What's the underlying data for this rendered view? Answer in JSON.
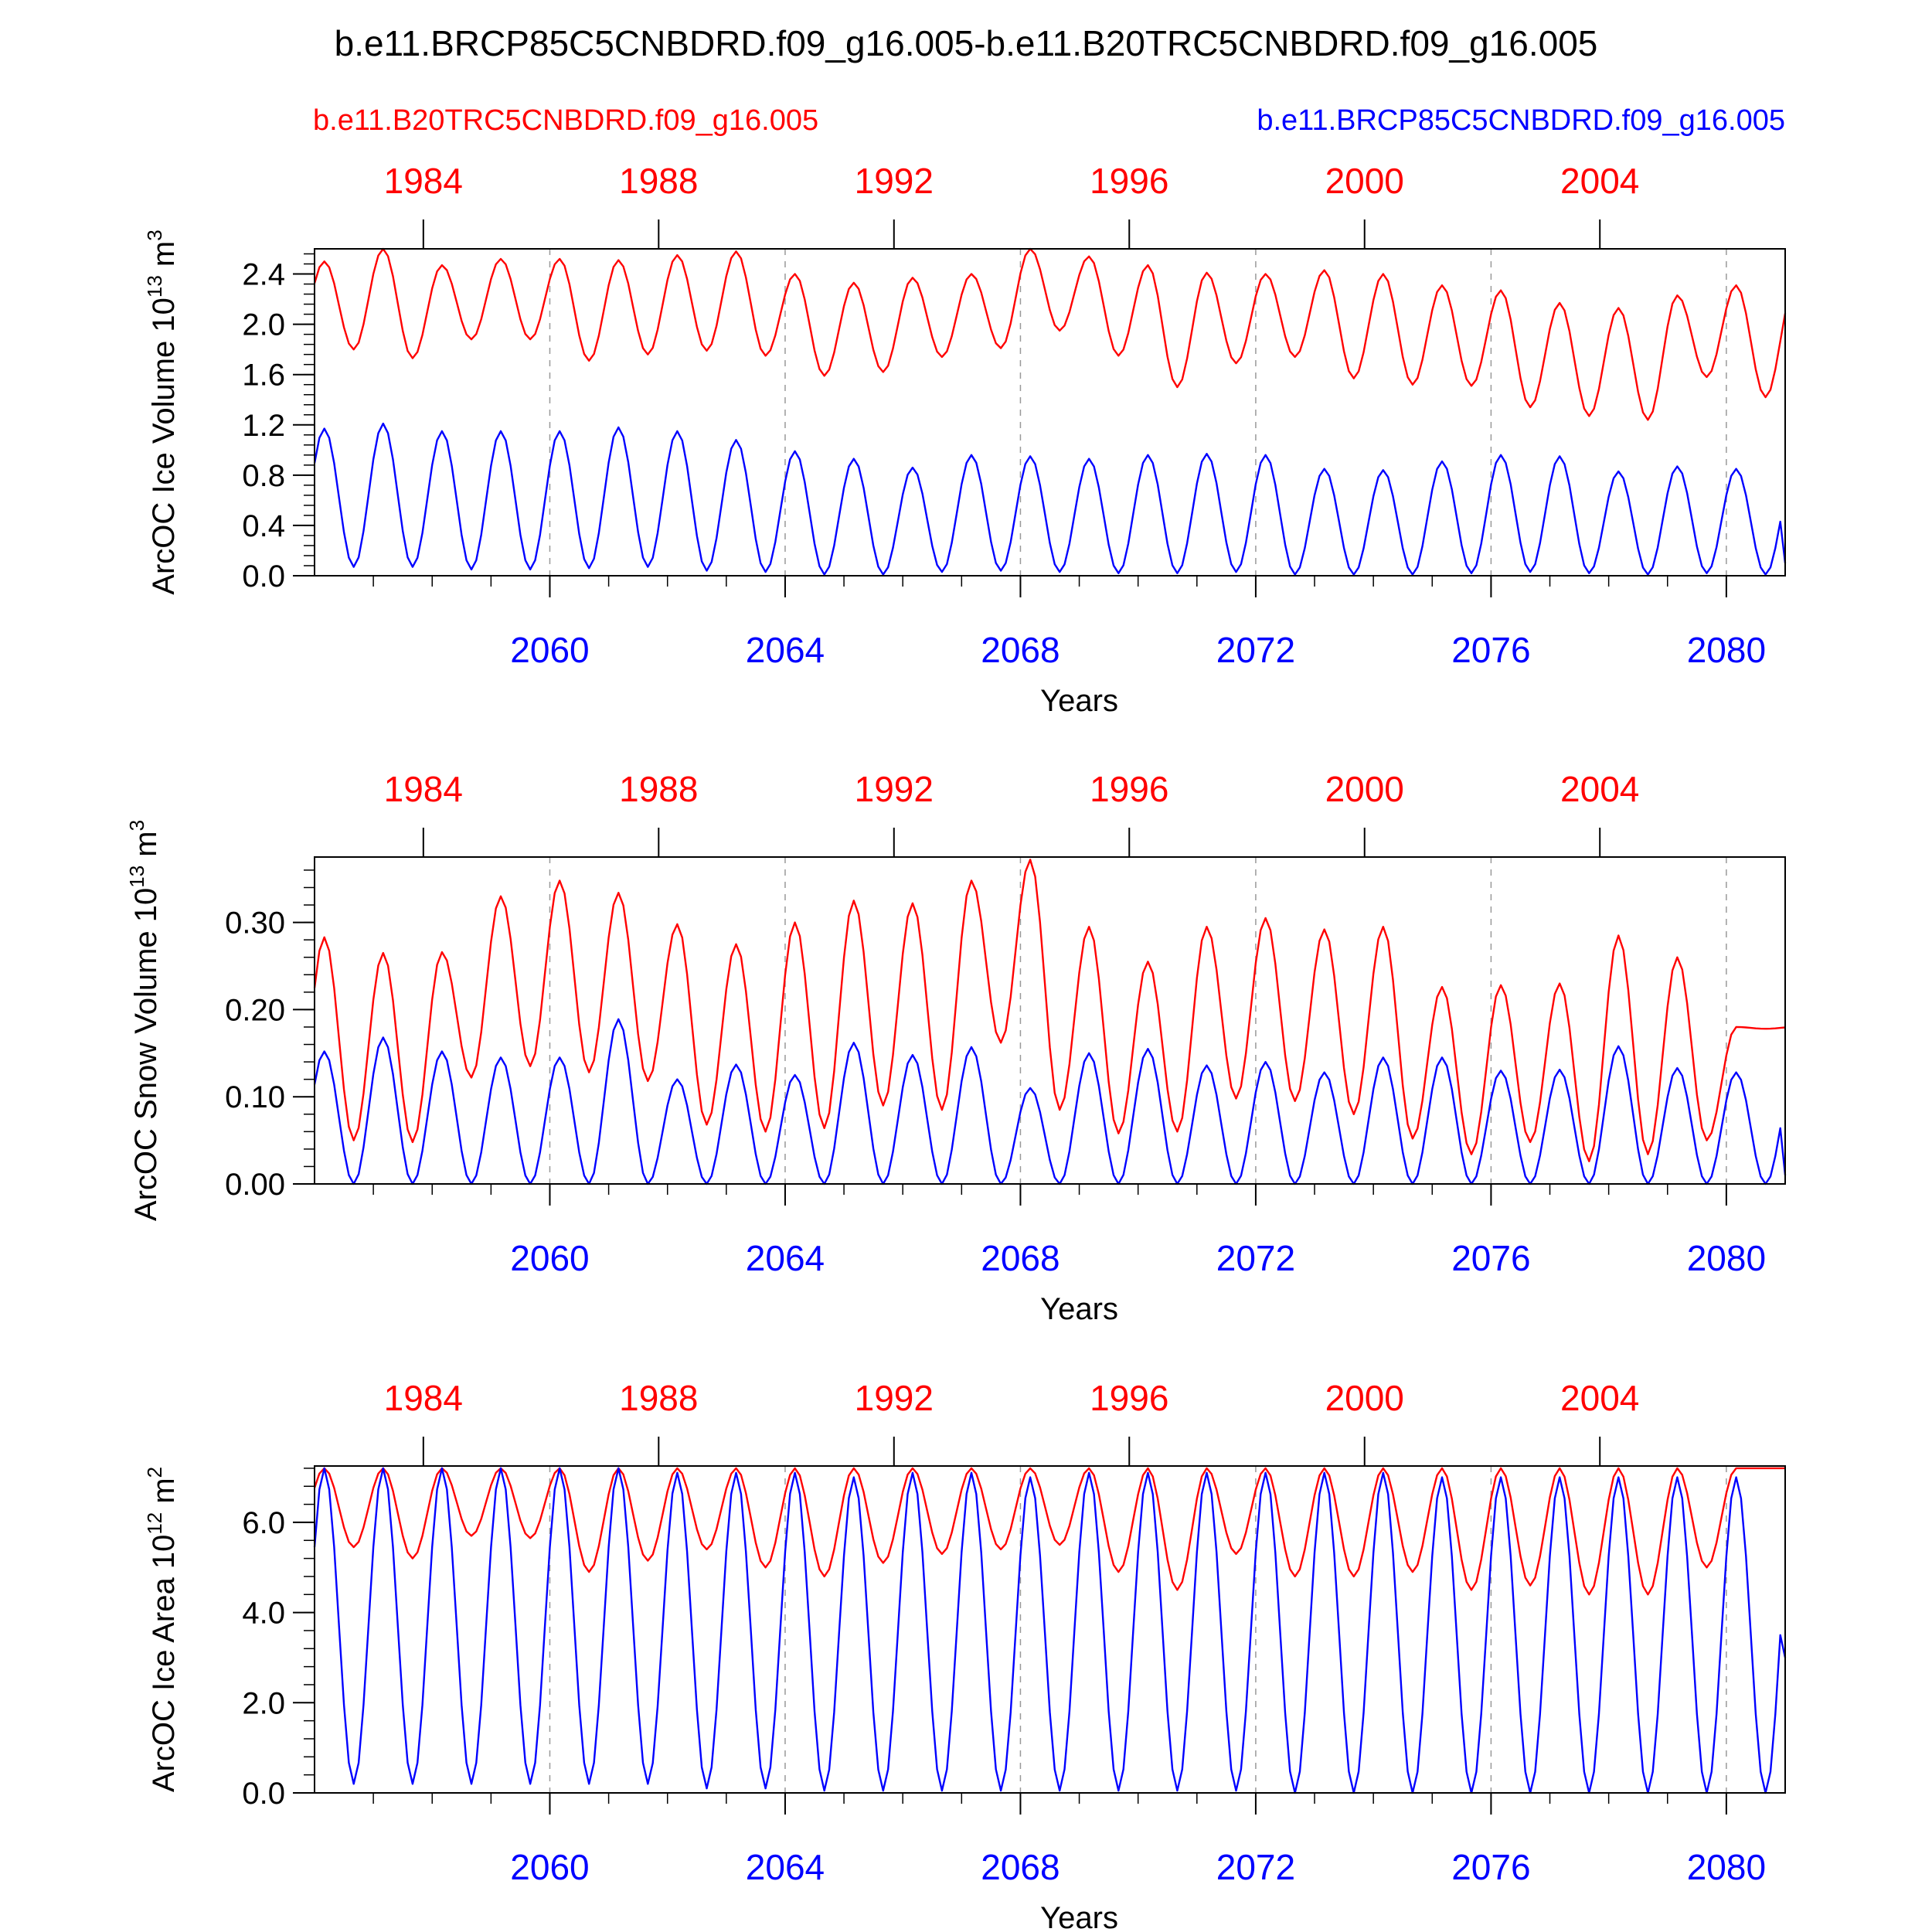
{
  "title": "b.e11.BRCP85C5CNBDRD.f09_g16.005-b.e11.B20TRC5CNBDRD.f09_g16.005",
  "legend": {
    "left": "b.e11.B20TRC5CNBDRD.f09_g16.005",
    "right": "b.e11.BRCP85C5CNBDRD.f09_g16.005"
  },
  "colors": {
    "red": "#ff0000",
    "blue": "#0000ff",
    "axis": "#000000",
    "grid": "#999999"
  },
  "chart_data": [
    {
      "type": "line",
      "ylabel": "ArcOC Ice Volume 10",
      "ylabel_exp": "13",
      "ylabel_unit": "m",
      "ylabel_unit_exp": "3",
      "xlabel": "Years",
      "ylim": [
        0.0,
        2.6
      ],
      "yticks": [
        "0.0",
        "0.4",
        "0.8",
        "1.2",
        "1.6",
        "2.0",
        "2.4"
      ],
      "ytick_values": [
        0.0,
        0.4,
        0.8,
        1.2,
        1.6,
        2.0,
        2.4
      ],
      "top_axis_ticks": [
        "1984",
        "1988",
        "1992",
        "1996",
        "2000",
        "2004"
      ],
      "bottom_axis_ticks": [
        "2060",
        "2064",
        "2068",
        "2072",
        "2076",
        "2080"
      ],
      "series": [
        {
          "name": "b.e11.B20TRC5CNBDRD.f09_g16.005",
          "color": "#ff0000",
          "cycle_max": [
            2.5,
            2.6,
            2.47,
            2.52,
            2.52,
            2.51,
            2.55,
            2.58,
            2.4,
            2.33,
            2.37,
            2.4,
            2.6,
            2.54,
            2.47,
            2.41,
            2.4,
            2.43,
            2.4,
            2.31,
            2.27,
            2.17,
            2.13,
            2.23,
            2.31
          ],
          "cycle_min": [
            1.8,
            1.73,
            1.88,
            1.88,
            1.71,
            1.76,
            1.79,
            1.75,
            1.59,
            1.62,
            1.74,
            1.81,
            1.95,
            1.75,
            1.5,
            1.69,
            1.74,
            1.57,
            1.52,
            1.51,
            1.34,
            1.27,
            1.24,
            1.58,
            1.42
          ]
        },
        {
          "name": "b.e11.BRCP85C5CNBDRD.f09_g16.005",
          "color": "#0000ff",
          "cycle_max": [
            1.17,
            1.21,
            1.15,
            1.15,
            1.15,
            1.18,
            1.15,
            1.08,
            0.99,
            0.93,
            0.86,
            0.96,
            0.95,
            0.93,
            0.96,
            0.97,
            0.96,
            0.85,
            0.84,
            0.91,
            0.96,
            0.95,
            0.83,
            0.87,
            0.85
          ],
          "cycle_min": [
            0.07,
            0.07,
            0.05,
            0.05,
            0.06,
            0.07,
            0.04,
            0.03,
            0.01,
            0.01,
            0.03,
            0.04,
            0.03,
            0.02,
            0.02,
            0.03,
            0.01,
            0.01,
            0.01,
            0.02,
            0.03,
            0.02,
            0.01,
            0.02,
            0.01
          ],
          "end_value": 0.1
        }
      ]
    },
    {
      "type": "line",
      "ylabel": "ArcOC Snow Volume 10",
      "ylabel_exp": "13",
      "ylabel_unit": "m",
      "ylabel_unit_exp": "3",
      "xlabel": "Years",
      "ylim": [
        0.0,
        0.375
      ],
      "yticks": [
        "0.00",
        "0.10",
        "0.20",
        "0.30"
      ],
      "ytick_values": [
        0.0,
        0.1,
        0.2,
        0.3
      ],
      "top_axis_ticks": [
        "1984",
        "1988",
        "1992",
        "1996",
        "2000",
        "2004"
      ],
      "bottom_axis_ticks": [
        "2060",
        "2064",
        "2068",
        "2072",
        "2076",
        "2080"
      ],
      "series": [
        {
          "name": "b.e11.B20TRC5CNBDRD.f09_g16.005",
          "color": "#ff0000",
          "cycle_max": [
            0.283,
            0.265,
            0.266,
            0.33,
            0.348,
            0.334,
            0.298,
            0.275,
            0.3,
            0.325,
            0.322,
            0.348,
            0.372,
            0.295,
            0.255,
            0.295,
            0.305,
            0.292,
            0.295,
            0.226,
            0.228,
            0.23,
            0.285,
            0.26,
            0.18
          ],
          "cycle_min": [
            0.05,
            0.048,
            0.122,
            0.135,
            0.128,
            0.118,
            0.068,
            0.06,
            0.064,
            0.09,
            0.085,
            0.162,
            0.085,
            0.058,
            0.06,
            0.098,
            0.095,
            0.08,
            0.052,
            0.034,
            0.048,
            0.026,
            0.034,
            0.05,
            0.178
          ]
        },
        {
          "name": "b.e11.BRCP85C5CNBDRD.f09_g16.005",
          "color": "#0000ff",
          "cycle_max": [
            0.152,
            0.168,
            0.152,
            0.145,
            0.145,
            0.189,
            0.12,
            0.137,
            0.125,
            0.162,
            0.148,
            0.157,
            0.11,
            0.15,
            0.155,
            0.136,
            0.14,
            0.128,
            0.145,
            0.145,
            0.13,
            0.131,
            0.158,
            0.133,
            0.128
          ],
          "cycle_min": [
            0.0,
            0.0,
            0.0,
            0.0,
            0.0,
            0.0,
            0.0,
            0.0,
            0.0,
            0.0,
            0.0,
            0.0,
            0.0,
            0.0,
            0.0,
            0.0,
            0.0,
            0.0,
            0.0,
            0.0,
            0.0,
            0.0,
            0.0,
            0.0,
            0.0
          ],
          "end_value": 0.01
        }
      ]
    },
    {
      "type": "line",
      "ylabel": "ArcOC Ice Area 10",
      "ylabel_exp": "12",
      "ylabel_unit": "m",
      "ylabel_unit_exp": "2",
      "xlabel": "Years",
      "ylim": [
        0.0,
        7.25
      ],
      "yticks": [
        "0.0",
        "2.0",
        "4.0",
        "6.0"
      ],
      "ytick_values": [
        0.0,
        2.0,
        4.0,
        6.0
      ],
      "top_axis_ticks": [
        "1984",
        "1988",
        "1992",
        "1996",
        "2000",
        "2004"
      ],
      "bottom_axis_ticks": [
        "2060",
        "2064",
        "2068",
        "2072",
        "2076",
        "2080"
      ],
      "series": [
        {
          "name": "b.e11.B20TRC5CNBDRD.f09_g16.005",
          "color": "#ff0000",
          "cycle_max": [
            7.2,
            7.2,
            7.2,
            7.2,
            7.2,
            7.2,
            7.2,
            7.2,
            7.2,
            7.2,
            7.2,
            7.2,
            7.2,
            7.2,
            7.2,
            7.2,
            7.2,
            7.2,
            7.2,
            7.2,
            7.2,
            7.2,
            7.2,
            7.2,
            7.2
          ],
          "cycle_min": [
            5.45,
            5.2,
            5.7,
            5.65,
            4.9,
            5.15,
            5.4,
            5.0,
            4.8,
            5.1,
            5.3,
            5.4,
            5.5,
            4.9,
            4.5,
            5.3,
            4.8,
            4.8,
            4.9,
            4.5,
            4.6,
            4.4,
            4.4,
            5.0,
            7.2
          ]
        },
        {
          "name": "b.e11.BRCP85C5CNBDRD.f09_g16.005",
          "color": "#0000ff",
          "cycle_max": [
            7.2,
            7.2,
            7.2,
            7.2,
            7.2,
            7.2,
            7.1,
            7.1,
            7.1,
            7.0,
            7.1,
            7.1,
            7.0,
            7.1,
            7.1,
            7.1,
            7.1,
            7.1,
            7.1,
            7.0,
            7.0,
            7.0,
            7.0,
            7.0,
            7.0
          ],
          "cycle_min": [
            0.2,
            0.2,
            0.2,
            0.2,
            0.2,
            0.2,
            0.1,
            0.1,
            0.05,
            0.05,
            0.05,
            0.05,
            0.05,
            0.05,
            0.05,
            0.05,
            0.0,
            0.0,
            0.0,
            0.0,
            0.0,
            0.0,
            0.0,
            0.0,
            0.0
          ],
          "end_value": 3.0
        }
      ]
    }
  ]
}
